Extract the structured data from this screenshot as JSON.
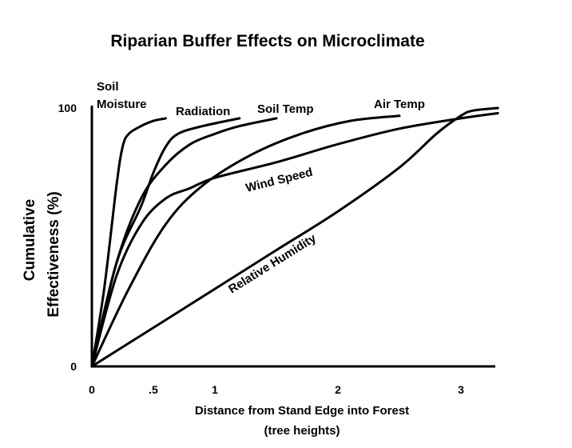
{
  "chart_data": {
    "type": "line",
    "title": "Riparian Buffer Effects on Microclimate",
    "xlabel": [
      "Distance from Stand Edge into Forest",
      "(tree heights)"
    ],
    "ylabel": [
      "Cumulative",
      "Effectiveness (%)"
    ],
    "xlim": [
      0,
      3.3
    ],
    "ylim": [
      0,
      100
    ],
    "x_ticks": [
      {
        "value": 0,
        "label": "0"
      },
      {
        "value": 0.5,
        "label": ".5"
      },
      {
        "value": 1,
        "label": "1"
      },
      {
        "value": 2,
        "label": "2"
      },
      {
        "value": 3,
        "label": "3"
      }
    ],
    "y_ticks": [
      {
        "value": 0,
        "label": "0"
      },
      {
        "value": 100,
        "label": "100"
      }
    ],
    "grid": false,
    "series": [
      {
        "name": "Soil Moisture",
        "label_lines": [
          "Soil",
          "Moisture"
        ],
        "points": [
          [
            0,
            0
          ],
          [
            0.1,
            30
          ],
          [
            0.2,
            70
          ],
          [
            0.25,
            85
          ],
          [
            0.3,
            90
          ],
          [
            0.4,
            93
          ],
          [
            0.5,
            95
          ],
          [
            0.6,
            96
          ]
        ]
      },
      {
        "name": "Radiation",
        "label_lines": [
          "Radiation"
        ],
        "points": [
          [
            0,
            0
          ],
          [
            0.2,
            40
          ],
          [
            0.4,
            62
          ],
          [
            0.5,
            75
          ],
          [
            0.6,
            85
          ],
          [
            0.7,
            90
          ],
          [
            0.9,
            93
          ],
          [
            1.2,
            96
          ]
        ]
      },
      {
        "name": "Soil Temp",
        "label_lines": [
          "Soil Temp"
        ],
        "points": [
          [
            0,
            0
          ],
          [
            0.2,
            40
          ],
          [
            0.4,
            65
          ],
          [
            0.6,
            78
          ],
          [
            0.8,
            86
          ],
          [
            1,
            90
          ],
          [
            1.2,
            93
          ],
          [
            1.5,
            96
          ]
        ]
      },
      {
        "name": "Air Temp",
        "label_lines": [
          "Air Temp"
        ],
        "points": [
          [
            0,
            0
          ],
          [
            0.3,
            30
          ],
          [
            0.6,
            55
          ],
          [
            0.9,
            70
          ],
          [
            1.3,
            82
          ],
          [
            1.7,
            90
          ],
          [
            2.1,
            95
          ],
          [
            2.5,
            97
          ]
        ]
      },
      {
        "name": "Wind Speed",
        "label_lines": [
          "Wind Speed"
        ],
        "points": [
          [
            0,
            0
          ],
          [
            0.2,
            35
          ],
          [
            0.4,
            55
          ],
          [
            0.6,
            65
          ],
          [
            0.8,
            69
          ],
          [
            1,
            73
          ],
          [
            1.5,
            79
          ],
          [
            2,
            86
          ],
          [
            2.5,
            92
          ],
          [
            3,
            96
          ],
          [
            3.3,
            98
          ]
        ]
      },
      {
        "name": "Relative Humidity",
        "label_lines": [
          "Relative Humidity"
        ],
        "points": [
          [
            0,
            0
          ],
          [
            0.5,
            15
          ],
          [
            1,
            30
          ],
          [
            1.5,
            45
          ],
          [
            2,
            60
          ],
          [
            2.5,
            77
          ],
          [
            2.8,
            90
          ],
          [
            3,
            97
          ],
          [
            3.1,
            99
          ],
          [
            3.3,
            100
          ]
        ]
      }
    ]
  }
}
